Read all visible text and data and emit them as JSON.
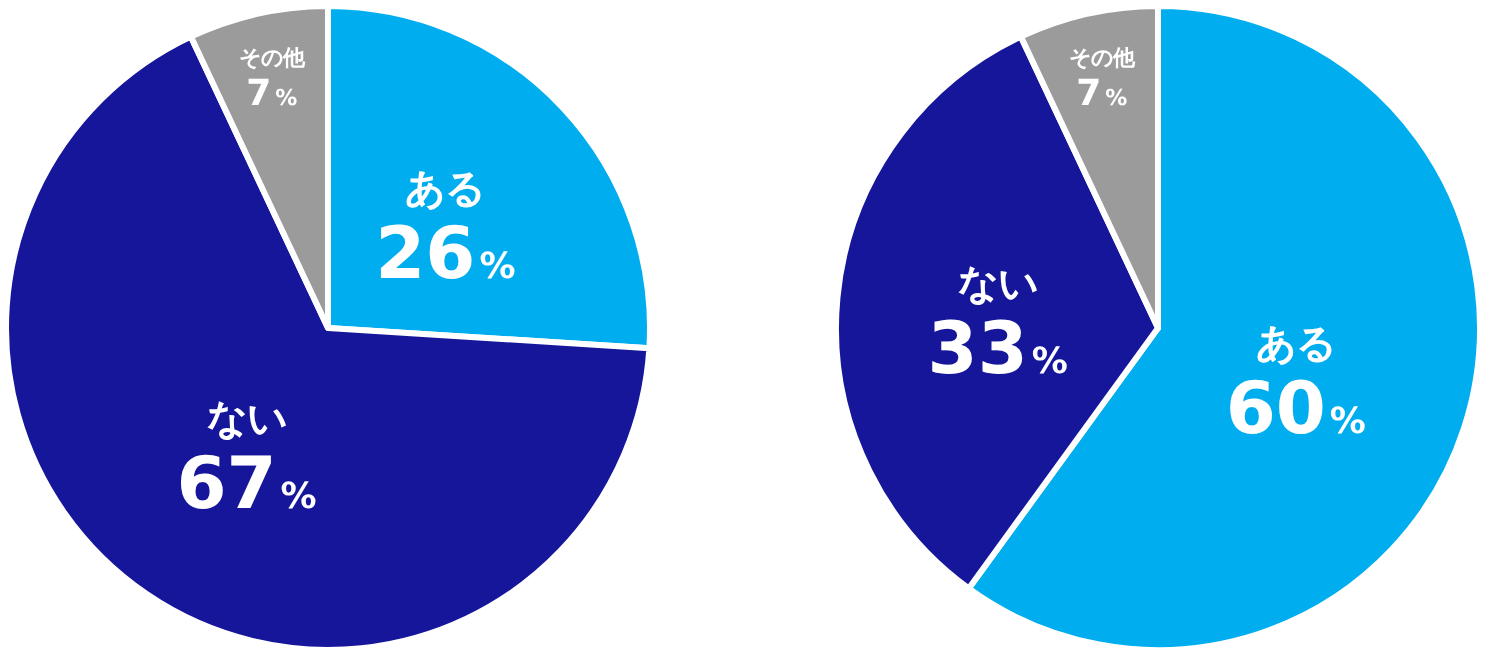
{
  "chart_data": [
    {
      "type": "pie",
      "categories": [
        "ある",
        "ない",
        "その他"
      ],
      "values": [
        26,
        67,
        7
      ],
      "colors": [
        "#00aeef",
        "#15169a",
        "#9b9b9b"
      ],
      "value_labels": [
        "26%",
        "67%",
        "7%"
      ]
    },
    {
      "type": "pie",
      "categories": [
        "ある",
        "ない",
        "その他"
      ],
      "values": [
        60,
        33,
        7
      ],
      "colors": [
        "#00aeef",
        "#15169a",
        "#9b9b9b"
      ],
      "value_labels": [
        "60%",
        "33%",
        "7%"
      ]
    }
  ]
}
